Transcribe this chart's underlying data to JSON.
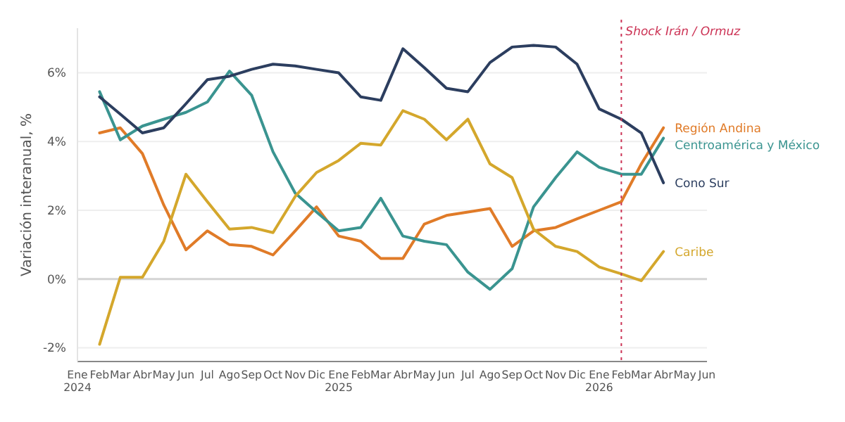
{
  "chart_data": {
    "type": "line",
    "ylabel": "Variación interanual, %",
    "x": [
      "2024-02",
      "2024-03",
      "2024-04",
      "2024-05",
      "2024-06",
      "2024-07",
      "2024-08",
      "2024-09",
      "2024-10",
      "2024-11",
      "2024-12",
      "2025-01",
      "2025-02",
      "2025-03",
      "2025-04",
      "2025-05",
      "2025-06",
      "2025-07",
      "2025-08",
      "2025-09",
      "2025-10",
      "2025-11",
      "2025-12",
      "2026-01",
      "2026-02",
      "2026-03",
      "2026-04"
    ],
    "series": [
      {
        "name": "Región Andina",
        "color": "#e07b28",
        "values": [
          4.25,
          4.4,
          3.65,
          2.15,
          0.85,
          1.4,
          1.0,
          0.95,
          0.7,
          1.4,
          2.1,
          1.25,
          1.1,
          0.6,
          0.6,
          1.6,
          1.85,
          1.95,
          2.05,
          0.95,
          1.4,
          1.5,
          1.75,
          2.0,
          2.25,
          3.35,
          4.4
        ]
      },
      {
        "name": "Centroamérica y México",
        "color": "#3a9490",
        "values": [
          5.45,
          4.05,
          4.45,
          4.65,
          4.85,
          5.15,
          6.05,
          5.35,
          3.7,
          2.5,
          1.95,
          1.4,
          1.5,
          2.35,
          1.25,
          1.1,
          1.0,
          0.2,
          -0.3,
          0.3,
          2.1,
          2.95,
          3.7,
          3.25,
          3.05,
          3.05,
          4.1
        ]
      },
      {
        "name": "Cono Sur",
        "color": "#2c3e5f",
        "values": [
          5.3,
          4.8,
          4.25,
          4.4,
          5.1,
          5.8,
          5.9,
          6.1,
          6.25,
          6.2,
          6.1,
          6.0,
          5.3,
          5.2,
          6.7,
          6.15,
          5.55,
          5.45,
          6.3,
          6.75,
          6.8,
          6.75,
          6.25,
          4.95,
          4.65,
          4.25,
          2.8
        ]
      },
      {
        "name": "Caribe",
        "color": "#d4a72c",
        "values": [
          -1.9,
          0.05,
          0.05,
          1.1,
          3.05,
          2.25,
          1.45,
          1.5,
          1.35,
          2.4,
          3.1,
          3.45,
          3.95,
          3.9,
          4.9,
          4.65,
          4.05,
          4.65,
          3.35,
          2.95,
          1.45,
          0.95,
          0.8,
          0.35,
          0.15,
          -0.05,
          0.8
        ]
      }
    ],
    "xlim": [
      "2024-01",
      "2026-06"
    ],
    "xticks": [
      {
        "value": "2024-01",
        "label": "Ene\n2024"
      },
      {
        "value": "2024-02",
        "label": "Feb"
      },
      {
        "value": "2024-03",
        "label": "Mar"
      },
      {
        "value": "2024-04",
        "label": "Abr"
      },
      {
        "value": "2024-05",
        "label": "May"
      },
      {
        "value": "2024-06",
        "label": "Jun"
      },
      {
        "value": "2024-07",
        "label": "Jul"
      },
      {
        "value": "2024-08",
        "label": "Ago"
      },
      {
        "value": "2024-09",
        "label": "Sep"
      },
      {
        "value": "2024-10",
        "label": "Oct"
      },
      {
        "value": "2024-11",
        "label": "Nov"
      },
      {
        "value": "2024-12",
        "label": "Dic"
      },
      {
        "value": "2025-01",
        "label": "Ene\n2025"
      },
      {
        "value": "2025-02",
        "label": "Feb"
      },
      {
        "value": "2025-03",
        "label": "Mar"
      },
      {
        "value": "2025-04",
        "label": "Abr"
      },
      {
        "value": "2025-05",
        "label": "May"
      },
      {
        "value": "2025-06",
        "label": "Jun"
      },
      {
        "value": "2025-07",
        "label": "Jul"
      },
      {
        "value": "2025-08",
        "label": "Ago"
      },
      {
        "value": "2025-09",
        "label": "Sep"
      },
      {
        "value": "2025-10",
        "label": "Oct"
      },
      {
        "value": "2025-11",
        "label": "Nov"
      },
      {
        "value": "2025-12",
        "label": "Dic"
      },
      {
        "value": "2026-01",
        "label": "Ene\n2026"
      },
      {
        "value": "2026-02",
        "label": "Feb"
      },
      {
        "value": "2026-03",
        "label": "Mar"
      },
      {
        "value": "2026-04",
        "label": "Abr"
      },
      {
        "value": "2026-05",
        "label": "May"
      },
      {
        "value": "2026-06",
        "label": "Jun"
      }
    ],
    "ylim": [
      -2.4,
      7.3
    ],
    "yticks": [
      {
        "value": -2,
        "label": "-2%"
      },
      {
        "value": 0,
        "label": "0%"
      },
      {
        "value": 2,
        "label": "2%"
      },
      {
        "value": 4,
        "label": "4%"
      },
      {
        "value": 6,
        "label": "6%"
      }
    ],
    "grid": "y",
    "ref_lines": [
      {
        "axis": "y",
        "value": 0,
        "color": "#d4d4d4",
        "line_style": "solid"
      },
      {
        "axis": "x",
        "value": "2026-02",
        "label": "Shock Irán / Ormuz",
        "color": "#cc3355",
        "line_style": "dotted"
      }
    ],
    "marker": "none",
    "line_style": "solid"
  }
}
